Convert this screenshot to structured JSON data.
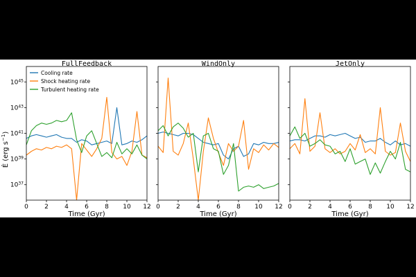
{
  "chart_data": {
    "type": "line",
    "ylabel_parts": [
      "Ė (erg s",
      "−1",
      ")"
    ],
    "xlabel": "Time (Gyr)",
    "xlim": [
      0,
      12
    ],
    "xticks": [
      0,
      2,
      4,
      6,
      8,
      10,
      12
    ],
    "y_scale": "log",
    "ylim_log10": [
      35.8,
      46.2
    ],
    "ytick_exponents": [
      37,
      39,
      41,
      43,
      45
    ],
    "legend_location": "upper-left of first panel",
    "series_styles": [
      {
        "name": "Cooling rate",
        "color": "#1f77b4"
      },
      {
        "name": "Shock heating rate",
        "color": "#ff7f0e"
      },
      {
        "name": "Turbulent heating rate",
        "color": "#2ca02c"
      }
    ],
    "panels": [
      {
        "title": "FullFeedback",
        "x": [
          0,
          0.5,
          1,
          1.5,
          2,
          2.5,
          3,
          3.5,
          4,
          4.5,
          5,
          5.5,
          6,
          6.5,
          7,
          7.5,
          8,
          8.5,
          9,
          9.5,
          10,
          10.5,
          11,
          11.5,
          12
        ],
        "series": [
          {
            "name": "Cooling rate",
            "log10_values": [
              40.6,
              40.8,
              40.9,
              40.8,
              40.7,
              40.8,
              40.9,
              40.7,
              40.6,
              40.6,
              40.3,
              40.5,
              40.4,
              40.1,
              40.2,
              40.3,
              40.4,
              40.2,
              43.0,
              40.1,
              40.2,
              40.4,
              40.3,
              40.5,
              40.8
            ]
          },
          {
            "name": "Shock heating rate",
            "log10_values": [
              39.3,
              39.6,
              39.8,
              39.7,
              39.9,
              39.8,
              40.0,
              39.9,
              40.1,
              39.8,
              35.8,
              40.2,
              39.7,
              39.2,
              39.8,
              40.6,
              43.8,
              39.5,
              39.0,
              39.2,
              38.5,
              39.6,
              42.7,
              39.3,
              39.1
            ]
          },
          {
            "name": "Turbulent heating rate",
            "log10_values": [
              40.1,
              41.2,
              41.6,
              41.8,
              41.7,
              41.8,
              42.0,
              41.9,
              42.0,
              42.6,
              40.5,
              39.5,
              40.8,
              41.2,
              40.2,
              39.2,
              39.5,
              39.1,
              40.3,
              39.4,
              39.8,
              39.4,
              40.1,
              39.3,
              39.0
            ]
          }
        ]
      },
      {
        "title": "WindOnly",
        "x": [
          0,
          0.5,
          1,
          1.5,
          2,
          2.5,
          3,
          3.5,
          4,
          4.5,
          5,
          5.5,
          6,
          6.5,
          7,
          7.5,
          8,
          8.5,
          9,
          9.5,
          10,
          10.5,
          11,
          11.5,
          12
        ],
        "series": [
          {
            "name": "Cooling rate",
            "log10_values": [
              41.0,
              41.1,
              41.0,
              40.9,
              40.8,
              41.0,
              41.0,
              40.9,
              40.6,
              40.3,
              40.2,
              40.1,
              40.2,
              39.3,
              39.0,
              39.8,
              40.0,
              39.2,
              39.4,
              40.2,
              40.1,
              40.3,
              40.2,
              40.2,
              40.3
            ]
          },
          {
            "name": "Shock heating rate",
            "log10_values": [
              40.0,
              39.5,
              45.3,
              39.6,
              39.3,
              40.2,
              41.8,
              39.0,
              35.8,
              39.6,
              42.2,
              40.6,
              39.5,
              38.5,
              40.2,
              39.6,
              40.0,
              42.0,
              38.2,
              39.8,
              39.5,
              40.1,
              39.7,
              40.2,
              39.9
            ]
          },
          {
            "name": "Turbulent heating rate",
            "log10_values": [
              41.2,
              41.6,
              40.8,
              41.5,
              41.8,
              41.4,
              40.7,
              41.0,
              38.0,
              40.8,
              41.0,
              39.8,
              39.6,
              37.8,
              38.5,
              40.2,
              36.5,
              36.8,
              36.9,
              36.8,
              37.0,
              36.7,
              36.8,
              36.9,
              37.1
            ]
          }
        ]
      },
      {
        "title": "JetOnly",
        "x": [
          0,
          0.5,
          1,
          1.5,
          2,
          2.5,
          3,
          3.5,
          4,
          4.5,
          5,
          5.5,
          6,
          6.5,
          7,
          7.5,
          8,
          8.5,
          9,
          9.5,
          10,
          10.5,
          11,
          11.5,
          12
        ],
        "series": [
          {
            "name": "Cooling rate",
            "log10_values": [
              40.4,
              40.5,
              40.5,
              40.4,
              40.6,
              40.8,
              40.8,
              40.7,
              40.9,
              40.8,
              40.9,
              41.0,
              40.8,
              40.6,
              40.7,
              40.3,
              40.4,
              40.4,
              40.6,
              40.3,
              40.1,
              40.4,
              40.1,
              40.2,
              40.0
            ]
          },
          {
            "name": "Shock heating rate",
            "log10_values": [
              39.8,
              40.2,
              39.4,
              43.7,
              39.6,
              40.0,
              42.6,
              39.8,
              39.5,
              39.8,
              39.4,
              39.6,
              40.2,
              39.7,
              40.9,
              39.5,
              39.8,
              39.4,
              43.0,
              39.6,
              39.3,
              39.5,
              41.8,
              39.6,
              38.8
            ]
          },
          {
            "name": "Turbulent heating rate",
            "log10_values": [
              40.8,
              41.5,
              40.6,
              41.0,
              40.0,
              40.2,
              40.5,
              40.1,
              40.0,
              39.4,
              39.6,
              38.8,
              39.8,
              38.6,
              38.8,
              39.0,
              37.8,
              38.7,
              37.9,
              38.8,
              39.6,
              39.0,
              40.3,
              38.2,
              38.0
            ]
          }
        ]
      }
    ]
  }
}
